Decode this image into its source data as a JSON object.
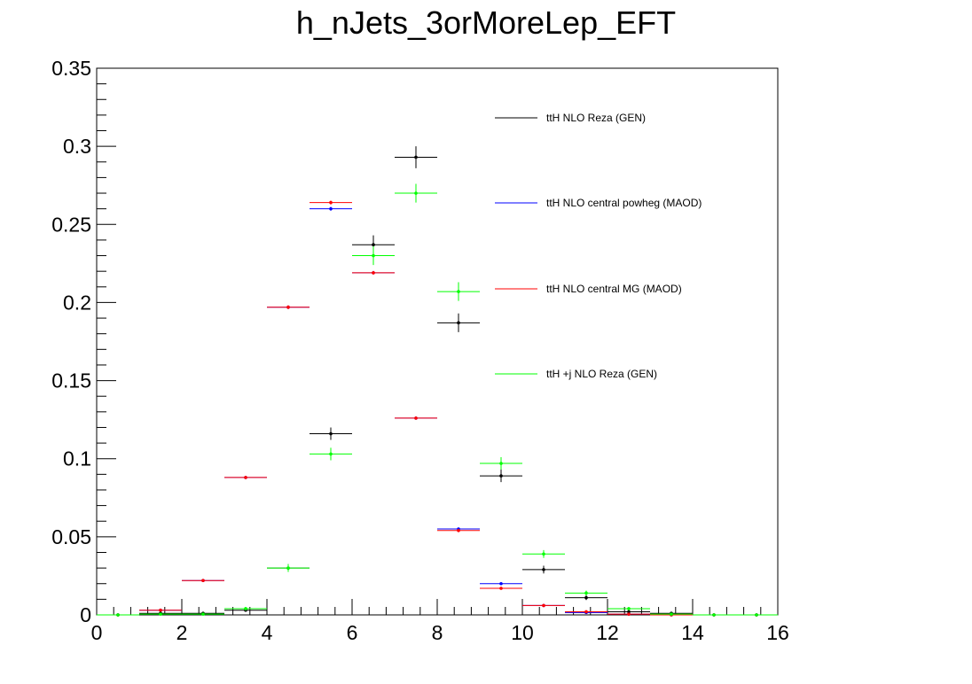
{
  "chart_data": {
    "type": "scatter",
    "title": "h_nJets_3orMoreLep_EFT",
    "xlabel": "",
    "ylabel": "",
    "xlim": [
      0,
      16
    ],
    "ylim": [
      0,
      0.35
    ],
    "grid": false,
    "legend_position": "top-right",
    "x_ticks": [
      "0",
      "2",
      "4",
      "6",
      "8",
      "10",
      "12",
      "14",
      "16"
    ],
    "y_ticks": [
      "0",
      "0.05",
      "0.1",
      "0.15",
      "0.2",
      "0.25",
      "0.3",
      "0.35"
    ],
    "bin_width": 1,
    "x": [
      0.5,
      1.5,
      2.5,
      3.5,
      4.5,
      5.5,
      6.5,
      7.5,
      8.5,
      9.5,
      10.5,
      11.5,
      12.5,
      13.5,
      14.5,
      15.5
    ],
    "series": [
      {
        "name": "ttH NLO Reza (GEN)",
        "color": "#000000",
        "values": [
          0,
          0.001,
          0.001,
          0.003,
          0.03,
          0.116,
          0.237,
          0.293,
          0.187,
          0.089,
          0.029,
          0.011,
          0.002,
          0.001,
          0,
          0
        ],
        "errors": [
          0,
          0.0005,
          0.0005,
          0.001,
          0.0025,
          0.004,
          0.006,
          0.007,
          0.006,
          0.004,
          0.0025,
          0.0015,
          0.0008,
          0.0005,
          0,
          0
        ]
      },
      {
        "name": "ttH NLO central powheg (MAOD)",
        "color": "#0000ff",
        "values": [
          0,
          0.003,
          0.022,
          0.088,
          0.197,
          0.26,
          0.219,
          0.126,
          0.055,
          0.02,
          0.006,
          0.0015,
          0.0005,
          0,
          0,
          0
        ],
        "errors": [
          0,
          0.0003,
          0.0005,
          0.001,
          0.0012,
          0.0012,
          0.0012,
          0.001,
          0.0008,
          0.0005,
          0.0003,
          0.0002,
          0.0001,
          0,
          0,
          0
        ]
      },
      {
        "name": "ttH NLO central MG (MAOD)",
        "color": "#ff0000",
        "values": [
          0,
          0.003,
          0.022,
          0.088,
          0.197,
          0.264,
          0.219,
          0.126,
          0.054,
          0.017,
          0.006,
          0.002,
          0.0005,
          0,
          0,
          0
        ],
        "errors": [
          0,
          0.0003,
          0.0005,
          0.001,
          0.0012,
          0.0012,
          0.0012,
          0.001,
          0.0008,
          0.0005,
          0.0003,
          0.0002,
          0.0001,
          0,
          0,
          0
        ]
      },
      {
        "name": "ttH +j NLO Reza (GEN)",
        "color": "#00ff00",
        "values": [
          0,
          0.0005,
          0.0005,
          0.004,
          0.03,
          0.103,
          0.23,
          0.27,
          0.207,
          0.097,
          0.039,
          0.014,
          0.004,
          0.0005,
          0,
          0
        ],
        "errors": [
          0,
          0.0003,
          0.0003,
          0.001,
          0.0025,
          0.004,
          0.006,
          0.006,
          0.006,
          0.004,
          0.0025,
          0.0015,
          0.0008,
          0.0003,
          0,
          0
        ]
      }
    ]
  }
}
